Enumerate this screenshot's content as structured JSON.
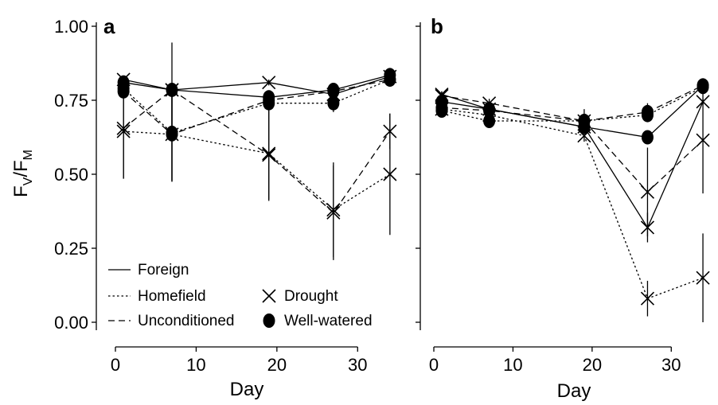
{
  "chart_data": [
    {
      "panel": "a",
      "type": "line",
      "xlabel": "Day",
      "ylabel": {
        "main1": "F",
        "sub1": "V",
        "slash": "/",
        "main2": "F",
        "sub2": "M"
      },
      "xlim": [
        0,
        35
      ],
      "ylim": [
        0,
        1.0
      ],
      "xticks": [
        "0",
        "10",
        "20",
        "30"
      ],
      "yticks": [
        "0.00",
        "0.25",
        "0.50",
        "0.75",
        "1.00"
      ],
      "x": [
        1,
        7,
        19,
        27,
        34
      ],
      "series": [
        {
          "name": "Foreign",
          "treatment": "Drought",
          "linestyle": "solid",
          "marker": "x",
          "values": [
            0.82,
            0.785,
            0.81,
            0.77,
            0.83
          ],
          "err": [
            0.01,
            0.01,
            0.01,
            0.01,
            0.01
          ]
        },
        {
          "name": "Foreign",
          "treatment": "Well-watered",
          "linestyle": "solid",
          "marker": "dot",
          "values": [
            0.81,
            0.785,
            0.76,
            0.785,
            0.835
          ],
          "err": [
            0.015,
            0.015,
            0.015,
            0.015,
            0.015
          ]
        },
        {
          "name": "Homefield",
          "treatment": "Drought",
          "linestyle": "dotted",
          "marker": "x",
          "values": [
            0.645,
            0.635,
            0.57,
            0.38,
            0.5
          ],
          "err": [
            0.16,
            0.16,
            0.16,
            0.16,
            0.205
          ]
        },
        {
          "name": "Homefield",
          "treatment": "Well-watered",
          "linestyle": "dotted",
          "marker": "dot",
          "values": [
            0.79,
            0.64,
            0.74,
            0.74,
            0.82
          ],
          "err": [
            0.015,
            0.16,
            0.015,
            0.03,
            0.015
          ]
        },
        {
          "name": "Unconditioned",
          "treatment": "Drought",
          "linestyle": "dashed",
          "marker": "x",
          "values": [
            0.655,
            0.785,
            0.565,
            0.37,
            0.645
          ],
          "err": [
            0.17,
            0.16,
            0.15,
            0.16,
            0.06
          ]
        },
        {
          "name": "Unconditioned",
          "treatment": "Well-watered",
          "linestyle": "dashed",
          "marker": "dot",
          "values": [
            0.78,
            0.635,
            0.75,
            0.78,
            0.82
          ],
          "err": [
            0.015,
            0.16,
            0.015,
            0.015,
            0.015
          ]
        }
      ],
      "legend": {
        "linestyles": [
          {
            "label": "Foreign",
            "style": "solid"
          },
          {
            "label": "Homefield",
            "style": "dotted"
          },
          {
            "label": "Unconditioned",
            "style": "dashed"
          }
        ],
        "markers": [
          {
            "label": "Drought",
            "marker": "x"
          },
          {
            "label": "Well-watered",
            "marker": "dot"
          }
        ],
        "placement": "bottom-left"
      },
      "grid": false
    },
    {
      "panel": "b",
      "type": "line",
      "xlabel": "Day",
      "xlim": [
        0,
        35
      ],
      "ylim": [
        0,
        1.0
      ],
      "xticks": [
        "0",
        "10",
        "20",
        "30"
      ],
      "x": [
        1,
        7,
        19,
        27,
        34
      ],
      "series": [
        {
          "name": "Foreign",
          "treatment": "Drought",
          "linestyle": "solid",
          "marker": "x",
          "values": [
            0.77,
            0.72,
            0.66,
            0.32,
            0.745
          ],
          "err": [
            0.01,
            0.01,
            0.02,
            0.05,
            0.01
          ]
        },
        {
          "name": "Foreign",
          "treatment": "Well-watered",
          "linestyle": "solid",
          "marker": "dot",
          "values": [
            0.745,
            0.72,
            0.66,
            0.625,
            0.8
          ],
          "err": [
            0.015,
            0.015,
            0.02,
            0.015,
            0.015
          ]
        },
        {
          "name": "Homefield",
          "treatment": "Drought",
          "linestyle": "dotted",
          "marker": "x",
          "values": [
            0.72,
            0.7,
            0.63,
            0.08,
            0.15
          ],
          "err": [
            0.015,
            0.015,
            0.02,
            0.06,
            0.15
          ]
        },
        {
          "name": "Homefield",
          "treatment": "Well-watered",
          "linestyle": "dotted",
          "marker": "dot",
          "values": [
            0.715,
            0.68,
            0.68,
            0.7,
            0.795
          ],
          "err": [
            0.015,
            0.015,
            0.015,
            0.015,
            0.015
          ]
        },
        {
          "name": "Unconditioned",
          "treatment": "Drought",
          "linestyle": "dashed",
          "marker": "x",
          "values": [
            0.765,
            0.74,
            0.68,
            0.44,
            0.615
          ],
          "err": [
            0.015,
            0.015,
            0.02,
            0.15,
            0.18
          ]
        },
        {
          "name": "Unconditioned",
          "treatment": "Well-watered",
          "linestyle": "dashed",
          "marker": "dot",
          "values": [
            0.725,
            0.715,
            0.68,
            0.71,
            0.8
          ],
          "err": [
            0.015,
            0.015,
            0.04,
            0.03,
            0.015
          ]
        }
      ],
      "grid": false
    }
  ]
}
